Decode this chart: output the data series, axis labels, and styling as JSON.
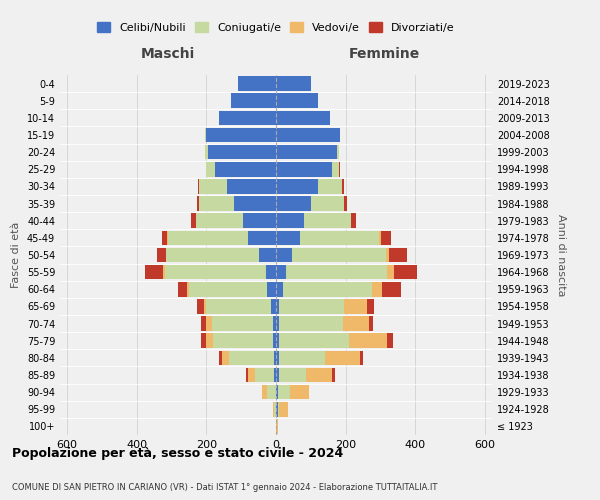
{
  "age_groups": [
    "100+",
    "95-99",
    "90-94",
    "85-89",
    "80-84",
    "75-79",
    "70-74",
    "65-69",
    "60-64",
    "55-59",
    "50-54",
    "45-49",
    "40-44",
    "35-39",
    "30-34",
    "25-29",
    "20-24",
    "15-19",
    "10-14",
    "5-9",
    "0-4"
  ],
  "birth_years": [
    "≤ 1923",
    "1924-1928",
    "1929-1933",
    "1934-1938",
    "1939-1943",
    "1944-1948",
    "1949-1953",
    "1954-1958",
    "1959-1963",
    "1964-1968",
    "1969-1973",
    "1974-1978",
    "1979-1983",
    "1984-1988",
    "1989-1993",
    "1994-1998",
    "1999-2003",
    "2004-2008",
    "2009-2013",
    "2014-2018",
    "2019-2023"
  ],
  "colors": {
    "celibi": "#4472c4",
    "coniugati": "#c5d9a0",
    "vedovi": "#f0b96a",
    "divorziati": "#c0392b"
  },
  "males": {
    "celibi": [
      0,
      0,
      0,
      5,
      5,
      10,
      10,
      15,
      25,
      30,
      50,
      80,
      95,
      120,
      140,
      175,
      195,
      200,
      165,
      130,
      110
    ],
    "coniugati": [
      0,
      5,
      25,
      55,
      130,
      170,
      175,
      185,
      225,
      290,
      265,
      230,
      135,
      100,
      80,
      25,
      10,
      5,
      0,
      0,
      0
    ],
    "vedovi": [
      0,
      5,
      15,
      20,
      20,
      20,
      15,
      8,
      5,
      5,
      2,
      2,
      0,
      0,
      0,
      0,
      0,
      0,
      0,
      0,
      0
    ],
    "divorziati": [
      0,
      0,
      0,
      5,
      10,
      15,
      15,
      20,
      25,
      50,
      25,
      15,
      15,
      8,
      5,
      0,
      0,
      0,
      0,
      0,
      0
    ]
  },
  "females": {
    "celibi": [
      0,
      5,
      5,
      10,
      10,
      10,
      8,
      10,
      20,
      30,
      45,
      70,
      80,
      100,
      120,
      160,
      175,
      185,
      155,
      120,
      100
    ],
    "coniugati": [
      0,
      5,
      35,
      75,
      130,
      200,
      185,
      185,
      255,
      290,
      270,
      225,
      135,
      95,
      70,
      20,
      5,
      0,
      0,
      0,
      0
    ],
    "vedovi": [
      5,
      25,
      55,
      75,
      100,
      110,
      75,
      65,
      30,
      20,
      10,
      5,
      0,
      0,
      0,
      0,
      0,
      0,
      0,
      0,
      0
    ],
    "divorziati": [
      0,
      0,
      0,
      10,
      10,
      15,
      10,
      20,
      55,
      65,
      50,
      30,
      15,
      8,
      5,
      5,
      0,
      0,
      0,
      0,
      0
    ]
  },
  "xlim": 620,
  "title": "Popolazione per età, sesso e stato civile - 2024",
  "subtitle": "COMUNE DI SAN PIETRO IN CARIANO (VR) - Dati ISTAT 1° gennaio 2024 - Elaborazione TUTTAITALIA.IT",
  "xlabel_left": "Maschi",
  "xlabel_right": "Femmine",
  "ylabel": "Fasce di età",
  "ylabel_right": "Anni di nascita",
  "legend_labels": [
    "Celibi/Nubili",
    "Coniugati/e",
    "Vedovi/e",
    "Divorziati/e"
  ],
  "background_color": "#f0f0f0"
}
